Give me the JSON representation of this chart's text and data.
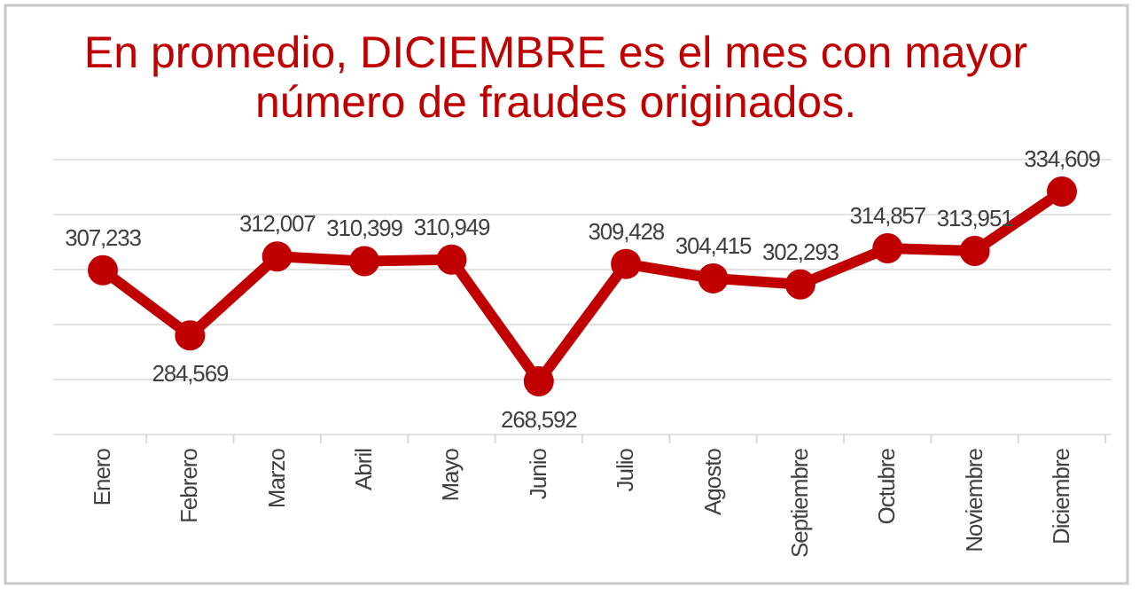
{
  "chart_data": {
    "type": "line",
    "title": "En promedio, DICIEMBRE es el mes con mayor número de fraudes originados.",
    "categories": [
      "Enero",
      "Febrero",
      "Marzo",
      "Abril",
      "Mayo",
      "Junio",
      "Julio",
      "Agosto",
      "Septiembre",
      "Octubre",
      "Noviembre",
      "Diciembre"
    ],
    "series": [
      {
        "color": "#c00000",
        "values": [
          307233,
          284569,
          312007,
          310399,
          310949,
          268592,
          309428,
          304415,
          302293,
          314857,
          313951,
          334609
        ],
        "value_labels": [
          "307,233",
          "284,569",
          "312,007",
          "310,399",
          "310,949",
          "268,592",
          "309,428",
          "304,415",
          "302,293",
          "314,857",
          "313,951",
          "334,609"
        ]
      }
    ],
    "tick_labels": "x",
    "grid": "y",
    "marker": "circle",
    "line_style": "solid"
  }
}
